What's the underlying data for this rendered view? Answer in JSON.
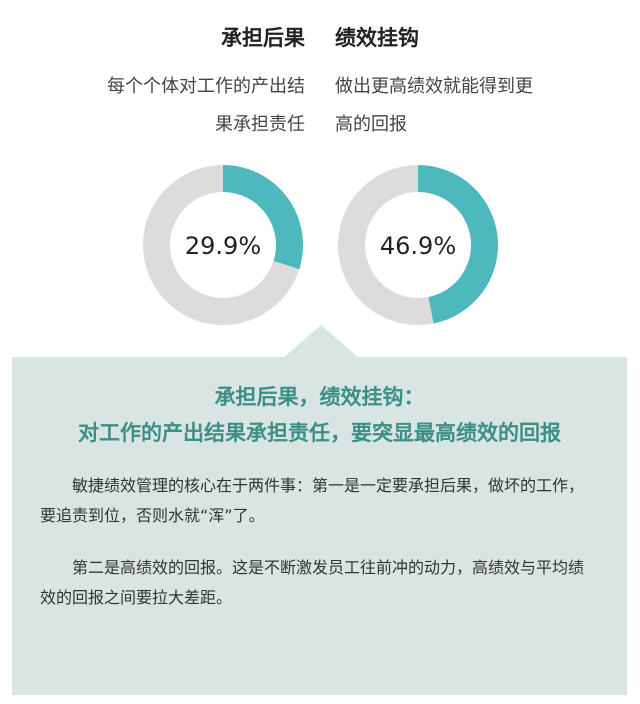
{
  "columns": [
    {
      "title": "承担后果",
      "description": [
        "每个个体对工作的产出结",
        "果承担责任"
      ]
    },
    {
      "title": "绩效挂钩",
      "description": [
        "做出更高绩效就能得到更",
        "高的回报"
      ]
    }
  ],
  "chart_data": [
    {
      "type": "pie",
      "variant": "donut",
      "values": [
        29.9,
        70.1
      ],
      "label": "29.9%",
      "colors": [
        "#4db8bd",
        "#dddbdc"
      ]
    },
    {
      "type": "pie",
      "variant": "donut",
      "values": [
        46.9,
        53.1
      ],
      "label": "46.9%",
      "colors": [
        "#4db8bd",
        "#dddbdc"
      ]
    }
  ],
  "panel": {
    "heading": [
      "承担后果，绩效挂钩：",
      "对工作的产出结果承担责任，要突显最高绩效的回报"
    ],
    "paragraphs": [
      "敏捷绩效管理的核心在于两件事：第一是一定要承担后果，做坏的工作，要追责到位，否则水就“浑”了。",
      "第二是高绩效的回报。这是不断激发员工往前冲的动力，高绩效与平均绩效的回报之间要拉大差距。"
    ],
    "background": "#d8e5e2",
    "heading_color": "#3c8f86"
  }
}
